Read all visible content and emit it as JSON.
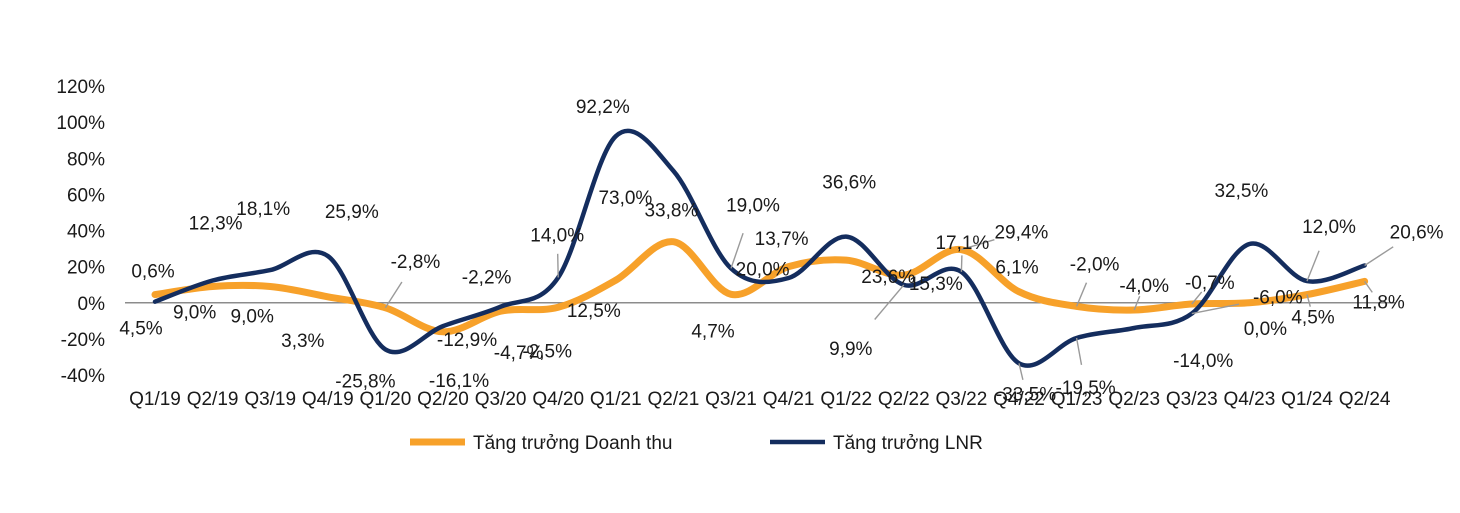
{
  "chart_data": {
    "type": "line",
    "categories": [
      "Q1/19",
      "Q2/19",
      "Q3/19",
      "Q4/19",
      "Q1/20",
      "Q2/20",
      "Q3/20",
      "Q4/20",
      "Q1/21",
      "Q2/21",
      "Q3/21",
      "Q4/21",
      "Q1/22",
      "Q2/22",
      "Q3/22",
      "Q4/22",
      "Q1/23",
      "Q2/23",
      "Q3/23",
      "Q4/23",
      "Q1/24",
      "Q2/24"
    ],
    "yticks": [
      "-40%",
      "-20%",
      "0%",
      "20%",
      "40%",
      "60%",
      "80%",
      "100%",
      "120%"
    ],
    "ylim": [
      -40,
      120
    ],
    "grid": false,
    "legend_position": "bottom",
    "series": [
      {
        "name": "Tăng trưởng Doanh thu",
        "color": "#f7a12a",
        "values": [
          4.5,
          9.0,
          9.0,
          3.3,
          -2.8,
          -16.1,
          -4.7,
          -2.5,
          12.5,
          33.8,
          4.7,
          20.0,
          23.6,
          15.3,
          29.4,
          6.1,
          -2.0,
          -4.0,
          -0.7,
          0.0,
          4.5,
          11.8
        ],
        "labels": [
          "4,5%",
          "9,0%",
          "9,0%",
          "3,3%",
          "-2,8%",
          "-16,1%",
          "-4,7%",
          "-2,5%",
          "12,5%",
          "33,8%",
          "4,7%",
          "20,0%",
          "23,6%",
          "15,3%",
          "29,4%",
          "6,1%",
          "-2,0%",
          "-4,0%",
          "-0,7%",
          "0,0%",
          "4,5%",
          "11,8%"
        ]
      },
      {
        "name": "Tăng trưởng LNR",
        "color": "#142d5e",
        "values": [
          0.6,
          12.3,
          18.1,
          25.9,
          -25.8,
          -12.9,
          -2.2,
          14.0,
          92.2,
          73.0,
          19.0,
          13.7,
          36.6,
          9.9,
          17.1,
          -33.5,
          -19.5,
          -14.0,
          -6.0,
          32.5,
          12.0,
          20.6
        ],
        "labels": [
          "0,6%",
          "12,3%",
          "18,1%",
          "25,9%",
          "-25,8%",
          "-12,9%",
          "-2,2%",
          "14,0%",
          "92,2%",
          "73,0%",
          "19,0%",
          "13,7%",
          "36,6%",
          "9,9%",
          "17,1%",
          "-33,5%",
          "-19,5%",
          "-14,0%",
          "-6,0%",
          "32,5%",
          "12,0%",
          "20,6%"
        ]
      }
    ]
  }
}
